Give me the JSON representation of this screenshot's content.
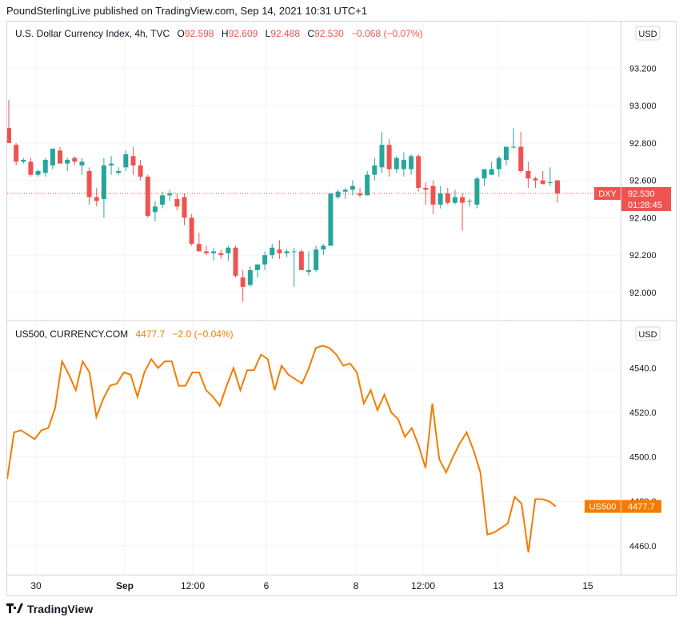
{
  "publisher_line": "PoundSterlingLive published on TradingView.com, Sep 14, 2021 10:31 UTC+1",
  "footer": {
    "brand": "TradingView",
    "logo_icon": "tradingview-logo-icon"
  },
  "colors": {
    "up": "#26a69a",
    "down": "#ef5350",
    "line": "#f57c00",
    "grid": "#f0f3fa",
    "axis_text": "#131722"
  },
  "chart_data": [
    {
      "type": "candlestick",
      "legend": {
        "title": "U.S. Dollar Currency Index, 4h, TVC",
        "o_label": "O",
        "o_value": "92.598",
        "h_label": "H",
        "h_value": "92.609",
        "l_label": "L",
        "l_value": "92.488",
        "c_label": "C",
        "c_value": "92.530",
        "change": "−0.068 (−0.07%)"
      },
      "currency": "USD",
      "y_ticks": [
        "93.200",
        "93.000",
        "92.800",
        "92.600",
        "92.400",
        "92.200",
        "92.000"
      ],
      "ylim": [
        91.85,
        93.45
      ],
      "last_price_label": {
        "symbol": "DXY",
        "price": "92.530",
        "countdown": "01:28:45",
        "value": 92.53
      },
      "candles": [
        [
          92.88,
          93.03,
          92.8,
          92.8
        ],
        [
          92.79,
          92.8,
          92.68,
          92.7
        ],
        [
          92.7,
          92.72,
          92.69,
          92.71
        ],
        [
          92.7,
          92.72,
          92.62,
          92.63
        ],
        [
          92.63,
          92.66,
          92.62,
          92.65
        ],
        [
          92.64,
          92.72,
          92.62,
          92.71
        ],
        [
          92.68,
          92.77,
          92.66,
          92.77
        ],
        [
          92.76,
          92.78,
          92.69,
          92.69
        ],
        [
          92.69,
          92.72,
          92.65,
          92.71
        ],
        [
          92.72,
          92.73,
          92.68,
          92.7
        ],
        [
          92.68,
          92.72,
          92.63,
          92.7
        ],
        [
          92.65,
          92.67,
          92.47,
          92.51
        ],
        [
          92.51,
          92.56,
          92.46,
          92.49
        ],
        [
          92.5,
          92.72,
          92.4,
          92.68
        ],
        [
          92.68,
          92.73,
          92.63,
          92.69
        ],
        [
          92.64,
          92.67,
          92.63,
          92.65
        ],
        [
          92.67,
          92.76,
          92.65,
          92.74
        ],
        [
          92.73,
          92.78,
          92.63,
          92.68
        ],
        [
          92.68,
          92.71,
          92.6,
          92.62
        ],
        [
          92.62,
          92.63,
          92.4,
          92.41
        ],
        [
          92.43,
          92.49,
          92.38,
          92.46
        ],
        [
          92.47,
          92.54,
          92.45,
          92.52
        ],
        [
          92.52,
          92.55,
          92.49,
          92.53
        ],
        [
          92.5,
          92.53,
          92.44,
          92.46
        ],
        [
          92.51,
          92.53,
          92.36,
          92.4
        ],
        [
          92.4,
          92.42,
          92.25,
          92.26
        ],
        [
          92.26,
          92.32,
          92.22,
          92.22
        ],
        [
          92.22,
          92.25,
          92.2,
          92.21
        ],
        [
          92.21,
          92.24,
          92.17,
          92.22
        ],
        [
          92.21,
          92.23,
          92.18,
          92.2
        ],
        [
          92.21,
          92.25,
          92.17,
          92.24
        ],
        [
          92.24,
          92.25,
          92.08,
          92.09
        ],
        [
          92.08,
          92.12,
          91.95,
          92.03
        ],
        [
          92.04,
          92.14,
          92.03,
          92.12
        ],
        [
          92.12,
          92.15,
          92.08,
          92.15
        ],
        [
          92.15,
          92.22,
          92.12,
          92.2
        ],
        [
          92.2,
          92.26,
          92.18,
          92.24
        ],
        [
          92.23,
          92.28,
          92.18,
          92.21
        ],
        [
          92.21,
          92.23,
          92.19,
          92.22
        ],
        [
          92.22,
          92.24,
          92.03,
          92.22
        ],
        [
          92.22,
          92.23,
          92.13,
          92.12
        ],
        [
          92.11,
          92.22,
          92.09,
          92.12
        ],
        [
          92.12,
          92.25,
          92.11,
          92.23
        ],
        [
          92.23,
          92.26,
          92.2,
          92.25
        ],
        [
          92.25,
          92.53,
          92.25,
          92.53
        ],
        [
          92.51,
          92.55,
          92.5,
          92.54
        ],
        [
          92.54,
          92.56,
          92.5,
          92.55
        ],
        [
          92.55,
          92.6,
          92.52,
          92.57
        ],
        [
          92.53,
          92.56,
          92.51,
          92.52
        ],
        [
          92.52,
          92.65,
          92.52,
          92.63
        ],
        [
          92.63,
          92.72,
          92.6,
          92.68
        ],
        [
          92.67,
          92.86,
          92.64,
          92.79
        ],
        [
          92.79,
          92.82,
          92.62,
          92.66
        ],
        [
          92.66,
          92.73,
          92.64,
          92.72
        ],
        [
          92.66,
          92.75,
          92.62,
          92.71
        ],
        [
          92.66,
          92.74,
          92.63,
          92.73
        ],
        [
          92.73,
          92.74,
          92.54,
          92.56
        ],
        [
          92.56,
          92.59,
          92.47,
          92.55
        ],
        [
          92.57,
          92.6,
          92.42,
          92.47
        ],
        [
          92.47,
          92.57,
          92.45,
          92.53
        ],
        [
          92.53,
          92.56,
          92.47,
          92.48
        ],
        [
          92.48,
          92.55,
          92.47,
          92.51
        ],
        [
          92.51,
          92.53,
          92.33,
          92.48
        ],
        [
          92.49,
          92.5,
          92.46,
          92.49
        ],
        [
          92.47,
          92.62,
          92.45,
          92.61
        ],
        [
          92.61,
          92.66,
          92.57,
          92.66
        ],
        [
          92.63,
          92.7,
          92.63,
          92.66
        ],
        [
          92.66,
          92.73,
          92.62,
          92.72
        ],
        [
          92.71,
          92.78,
          92.68,
          92.78
        ],
        [
          92.78,
          92.88,
          92.77,
          92.78
        ],
        [
          92.78,
          92.86,
          92.64,
          92.65
        ],
        [
          92.65,
          92.7,
          92.56,
          92.61
        ],
        [
          92.61,
          92.62,
          92.56,
          92.6
        ],
        [
          92.6,
          92.65,
          92.58,
          92.58
        ],
        [
          92.59,
          92.67,
          92.57,
          92.59
        ],
        [
          92.6,
          92.6,
          92.48,
          92.53
        ]
      ]
    },
    {
      "type": "line",
      "legend": {
        "title": "US500, CURRENCY.COM",
        "value": "4477.7",
        "change": "−2.0 (−0.04%)"
      },
      "currency": "USD",
      "y_ticks": [
        "4540.0",
        "4520.0",
        "4500.0",
        "4480.0",
        "4460.0"
      ],
      "ylim": [
        4447,
        4561
      ],
      "last_price_label": {
        "symbol": "US500",
        "price": "4477.7",
        "value": 4477.7
      },
      "values": [
        4490,
        4511,
        4512,
        4510,
        4508,
        4512,
        4513,
        4522,
        4543,
        4537,
        4530,
        4543,
        4538,
        4518,
        4526,
        4532,
        4533,
        4538,
        4537,
        4527,
        4538,
        4544,
        4540,
        4543,
        4543,
        4532,
        4532,
        4538,
        4538,
        4530,
        4527,
        4523,
        4532,
        4540,
        4530,
        4539,
        4539,
        4546,
        4544,
        4530,
        4541,
        4537,
        4535,
        4533,
        4540,
        4549,
        4550,
        4549,
        4546,
        4541,
        4542,
        4538,
        4524,
        4530,
        4521,
        4528,
        4520,
        4517,
        4509,
        4513,
        4505,
        4495,
        4524,
        4499,
        4493,
        4500,
        4506,
        4511,
        4503,
        4493,
        4465,
        4466,
        4468,
        4470,
        4482,
        4479,
        4457,
        4481,
        4481,
        4480,
        4477.7
      ]
    }
  ],
  "x_axis": {
    "labels": [
      {
        "text": "30",
        "bold": false
      },
      {
        "text": "Sep",
        "bold": true
      },
      {
        "text": "12:00",
        "bold": false
      },
      {
        "text": "6",
        "bold": false
      },
      {
        "text": "8",
        "bold": false
      },
      {
        "text": "12:00",
        "bold": false
      },
      {
        "text": "13",
        "bold": false
      },
      {
        "text": "15",
        "bold": false
      }
    ]
  }
}
